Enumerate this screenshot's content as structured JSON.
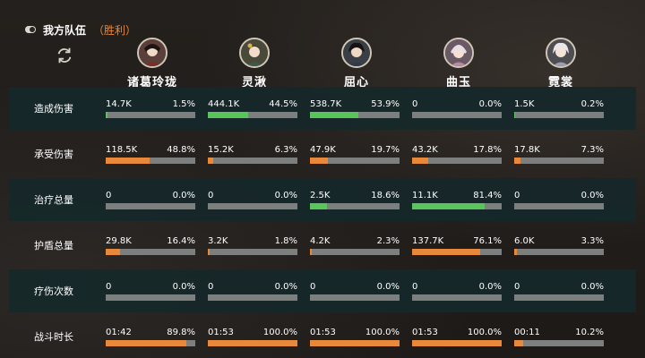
{
  "header": {
    "title": "我方队伍",
    "result": "（胜利）"
  },
  "heroes": [
    {
      "name": "诸葛玲珑"
    },
    {
      "name": "灵湫"
    },
    {
      "name": "屈心"
    },
    {
      "name": "曲玉"
    },
    {
      "name": "霓裳"
    }
  ],
  "colors": {
    "bar_track": "#7d7f7e",
    "green": "#59c459",
    "orange": "#e8883a",
    "row_dark": "#16282a"
  },
  "rows": [
    {
      "label": "造成伤害",
      "color": "green",
      "cells": [
        {
          "value": "14.7K",
          "percent": "1.5%",
          "fill": 1.5
        },
        {
          "value": "444.1K",
          "percent": "44.5%",
          "fill": 44.5
        },
        {
          "value": "538.7K",
          "percent": "53.9%",
          "fill": 53.9
        },
        {
          "value": "0",
          "percent": "0.0%",
          "fill": 0
        },
        {
          "value": "1.5K",
          "percent": "0.2%",
          "fill": 0.2
        }
      ]
    },
    {
      "label": "承受伤害",
      "color": "orange",
      "cells": [
        {
          "value": "118.5K",
          "percent": "48.8%",
          "fill": 48.8
        },
        {
          "value": "15.2K",
          "percent": "6.3%",
          "fill": 6.3
        },
        {
          "value": "47.9K",
          "percent": "19.7%",
          "fill": 19.7
        },
        {
          "value": "43.2K",
          "percent": "17.8%",
          "fill": 17.8
        },
        {
          "value": "17.8K",
          "percent": "7.3%",
          "fill": 7.3
        }
      ]
    },
    {
      "label": "治疗总量",
      "color": "green",
      "cells": [
        {
          "value": "0",
          "percent": "0.0%",
          "fill": 0
        },
        {
          "value": "0",
          "percent": "0.0%",
          "fill": 0
        },
        {
          "value": "2.5K",
          "percent": "18.6%",
          "fill": 18.6
        },
        {
          "value": "11.1K",
          "percent": "81.4%",
          "fill": 81.4
        },
        {
          "value": "0",
          "percent": "0.0%",
          "fill": 0
        }
      ]
    },
    {
      "label": "护盾总量",
      "color": "orange",
      "cells": [
        {
          "value": "29.8K",
          "percent": "16.4%",
          "fill": 16.4
        },
        {
          "value": "3.2K",
          "percent": "1.8%",
          "fill": 1.8
        },
        {
          "value": "4.2K",
          "percent": "2.3%",
          "fill": 2.3
        },
        {
          "value": "137.7K",
          "percent": "76.1%",
          "fill": 76.1
        },
        {
          "value": "6.0K",
          "percent": "3.3%",
          "fill": 3.3
        }
      ]
    },
    {
      "label": "疗伤次数",
      "color": "green",
      "cells": [
        {
          "value": "0",
          "percent": "0.0%",
          "fill": 0
        },
        {
          "value": "0",
          "percent": "0.0%",
          "fill": 0
        },
        {
          "value": "0",
          "percent": "0.0%",
          "fill": 0
        },
        {
          "value": "0",
          "percent": "0.0%",
          "fill": 0
        },
        {
          "value": "0",
          "percent": "0.0%",
          "fill": 0
        }
      ]
    },
    {
      "label": "战斗时长",
      "color": "orange",
      "cells": [
        {
          "value": "01:42",
          "percent": "89.8%",
          "fill": 89.8
        },
        {
          "value": "01:53",
          "percent": "100.0%",
          "fill": 100
        },
        {
          "value": "01:53",
          "percent": "100.0%",
          "fill": 100
        },
        {
          "value": "01:53",
          "percent": "100.0%",
          "fill": 100
        },
        {
          "value": "00:11",
          "percent": "10.2%",
          "fill": 10.2
        }
      ]
    }
  ]
}
